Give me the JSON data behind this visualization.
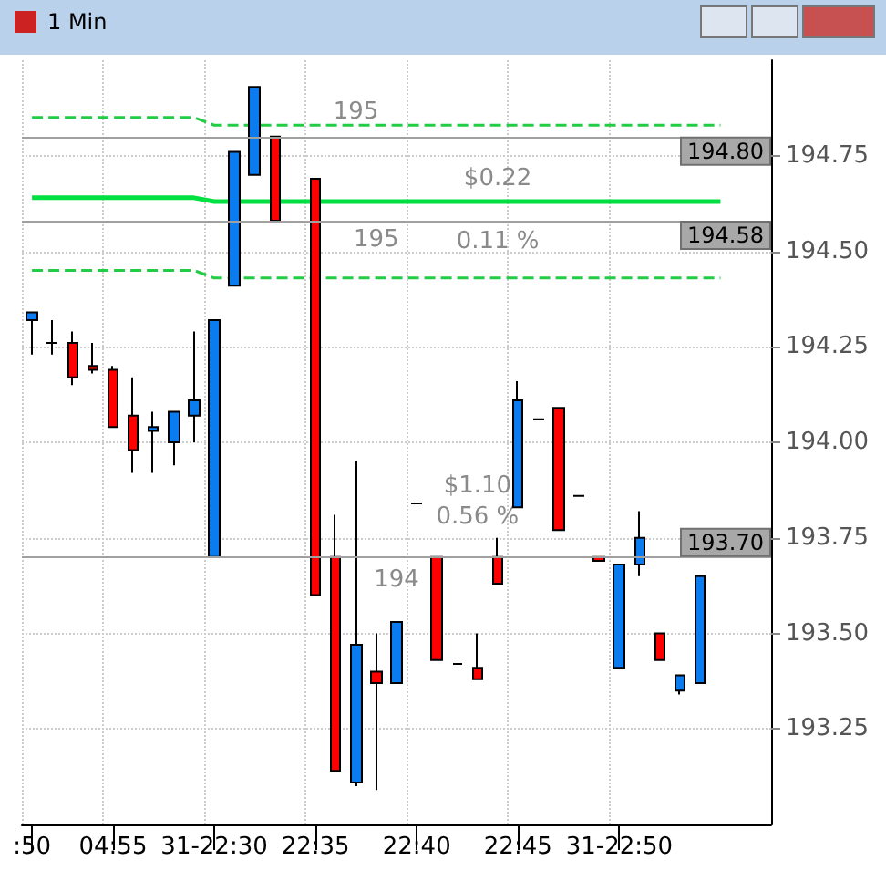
{
  "chart_data": {
    "type": "candlestick",
    "title": "1 Min",
    "categories": [
      ":50",
      null,
      null,
      null,
      "04:55",
      null,
      null,
      null,
      null,
      "31-22:30",
      null,
      null,
      null,
      null,
      "22:35",
      null,
      null,
      null,
      null,
      "22:40",
      null,
      null,
      null,
      null,
      "22:45",
      null,
      null,
      null,
      null,
      "31-22:50",
      null,
      null,
      null,
      null,
      null,
      null,
      null
    ],
    "ohlc": [
      [
        194.32,
        194.34,
        194.23,
        194.34
      ],
      [
        194.26,
        194.32,
        194.23,
        194.26
      ],
      [
        194.26,
        194.29,
        194.15,
        194.17
      ],
      [
        194.2,
        194.26,
        194.18,
        194.19
      ],
      [
        194.19,
        194.2,
        194.04,
        194.04
      ],
      [
        194.07,
        194.17,
        193.92,
        193.98
      ],
      [
        194.03,
        194.08,
        193.92,
        194.04
      ],
      [
        194.0,
        194.08,
        193.94,
        194.08
      ],
      [
        194.07,
        194.29,
        194.0,
        194.11
      ],
      [
        193.7,
        194.32,
        193.7,
        194.32
      ],
      [
        194.41,
        194.76,
        194.41,
        194.76
      ],
      [
        194.7,
        194.93,
        194.7,
        194.93
      ],
      [
        194.8,
        194.8,
        194.58,
        194.58
      ],
      null,
      [
        194.69,
        194.69,
        193.6,
        193.6
      ],
      [
        193.7,
        193.81,
        193.14,
        193.14
      ],
      [
        193.11,
        193.95,
        193.1,
        193.47
      ],
      [
        193.4,
        193.5,
        193.09,
        193.37
      ],
      [
        193.37,
        193.53,
        193.37,
        193.53
      ],
      [
        193.84,
        193.84,
        193.84,
        193.84
      ],
      [
        193.7,
        193.7,
        193.43,
        193.43
      ],
      [
        193.42,
        193.42,
        193.42,
        193.42
      ],
      [
        193.41,
        193.5,
        193.38,
        193.38
      ],
      [
        193.7,
        193.75,
        193.63,
        193.63
      ],
      [
        193.83,
        194.16,
        193.83,
        194.11
      ],
      [
        194.06,
        194.06,
        194.06,
        194.06
      ],
      [
        194.09,
        194.09,
        193.77,
        193.77
      ],
      [
        193.86,
        193.86,
        193.86,
        193.86
      ],
      [
        193.7,
        193.7,
        193.69,
        193.69
      ],
      [
        193.41,
        193.68,
        193.41,
        193.68
      ],
      [
        193.68,
        193.82,
        193.65,
        193.75
      ],
      [
        193.5,
        193.5,
        193.43,
        193.43
      ],
      [
        193.35,
        193.39,
        193.34,
        193.39
      ],
      [
        193.37,
        193.65,
        193.37,
        193.65
      ],
      null,
      null,
      null
    ],
    "colors": [
      "#0a7cf0",
      "#000000",
      "#ff0000",
      "#ff0000",
      "#ff0000",
      "#ff0000",
      "#0a7cf0",
      "#0a7cf0",
      "#0a7cf0",
      "#0a7cf0",
      "#0a7cf0",
      "#0a7cf0",
      "#ff0000",
      null,
      "#ff0000",
      "#ff0000",
      "#0a7cf0",
      "#ff0000",
      "#0a7cf0",
      "#000000",
      "#ff0000",
      "#000000",
      "#ff0000",
      "#ff0000",
      "#0a7cf0",
      "#000000",
      "#ff0000",
      "#000000",
      "#ff0000",
      "#0a7cf0",
      "#0a7cf0",
      "#ff0000",
      "#0a7cf0",
      "#0a7cf0",
      null,
      null,
      null
    ],
    "series": [
      {
        "type": "line",
        "color": "#22cc44",
        "line_style": "dashed",
        "values": [
          194.85,
          194.85,
          194.85,
          194.85,
          194.85,
          194.85,
          194.85,
          194.85,
          194.85,
          194.83,
          194.83,
          194.83,
          194.83,
          194.83,
          194.83,
          194.83,
          194.83,
          194.83,
          194.83,
          194.83,
          194.83,
          194.83,
          194.83,
          194.83,
          194.83,
          194.83,
          194.83,
          194.83,
          194.83,
          194.83,
          194.83,
          194.83,
          194.83,
          194.83,
          194.83,
          null,
          null
        ]
      },
      {
        "type": "line",
        "color": "#00e040",
        "line_style": "solid",
        "values": [
          194.64,
          194.64,
          194.64,
          194.64,
          194.64,
          194.64,
          194.64,
          194.64,
          194.64,
          194.63,
          194.63,
          194.63,
          194.63,
          194.63,
          194.63,
          194.63,
          194.63,
          194.63,
          194.63,
          194.63,
          194.63,
          194.63,
          194.63,
          194.63,
          194.63,
          194.63,
          194.63,
          194.63,
          194.63,
          194.63,
          194.63,
          194.63,
          194.63,
          194.63,
          194.63,
          null,
          null
        ]
      },
      {
        "type": "line",
        "color": "#22cc44",
        "line_style": "dashed",
        "values": [
          194.45,
          194.45,
          194.45,
          194.45,
          194.45,
          194.45,
          194.45,
          194.45,
          194.45,
          194.43,
          194.43,
          194.43,
          194.43,
          194.43,
          194.43,
          194.43,
          194.43,
          194.43,
          194.43,
          194.43,
          194.43,
          194.43,
          194.43,
          194.43,
          194.43,
          194.43,
          194.43,
          194.43,
          194.43,
          194.43,
          194.43,
          194.43,
          194.43,
          194.43,
          194.43,
          null,
          null
        ]
      }
    ],
    "ylim": [
      193.0,
      195.0
    ],
    "yticks": [
      {
        "value": 193.25,
        "label": "193.25"
      },
      {
        "value": 193.5,
        "label": "193.50"
      },
      {
        "value": 193.75,
        "label": "193.75"
      },
      {
        "value": 194.0,
        "label": "194.00"
      },
      {
        "value": 194.25,
        "label": "194.25"
      },
      {
        "value": 194.5,
        "label": "194.50"
      },
      {
        "value": 194.75,
        "label": "194.75"
      }
    ],
    "ref_lines": [
      {
        "axis": "y",
        "value": 194.8,
        "label": "194.80",
        "color": "#a0a0a0"
      },
      {
        "axis": "y",
        "value": 194.58,
        "label": "194.58",
        "color": "#a0a0a0"
      },
      {
        "axis": "y",
        "value": 193.7,
        "label": "193.70",
        "color": "#a0a0a0"
      }
    ],
    "annotations": [
      "195",
      "195",
      "$0.22",
      "0.11 %",
      "194",
      "$1.10",
      "0.56 %"
    ],
    "grid": true,
    "marker": "none"
  }
}
